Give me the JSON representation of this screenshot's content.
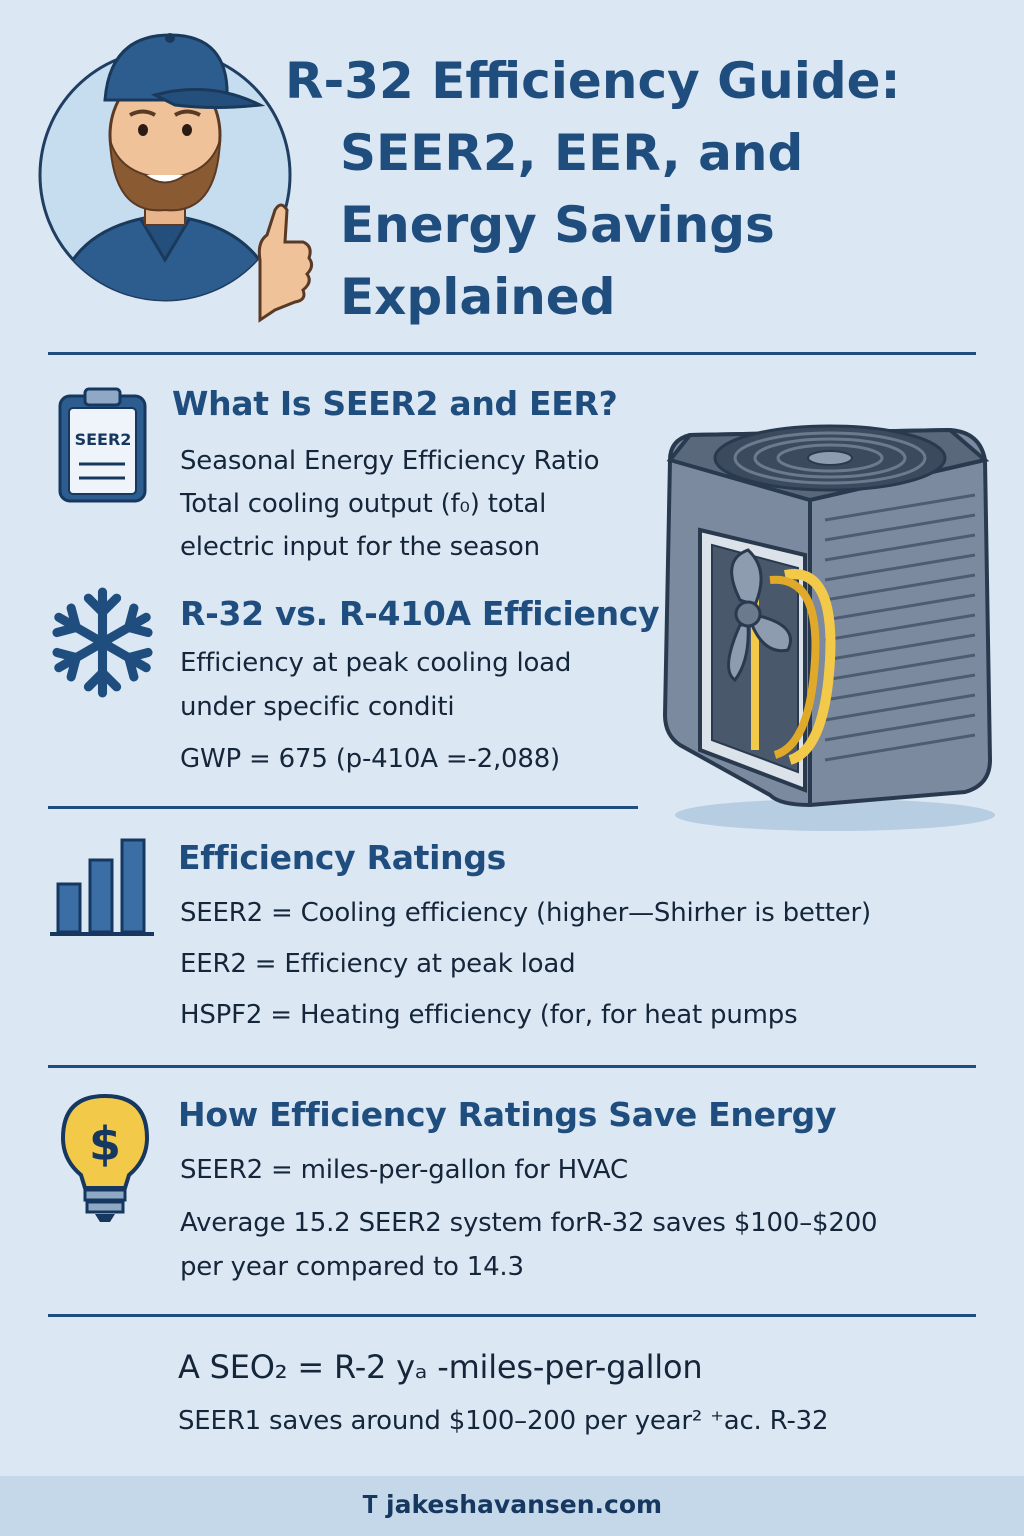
{
  "header": {
    "title_lines": [
      "R-32 Efficiency Guide:",
      "SEER2, EER, and",
      "Energy Savings",
      "Explained"
    ]
  },
  "section1": {
    "heading": "What Is SEER2 and EER?",
    "icon_label": "SEER2",
    "icon": "clipboard-icon",
    "lines": [
      "Seasonal Energy Efficiency Ratio",
      "Total cooling output (f₀) total",
      "electric input for the season"
    ]
  },
  "section2": {
    "heading": "R-32 vs. R-410A Efficiency",
    "icon": "snowflake-icon",
    "lines": [
      "Efficiency at peak cooling load",
      "under specific conditi",
      "GWP = 675 (p-410A =-2,088)"
    ]
  },
  "section3": {
    "heading": "Efficiency Ratings",
    "icon": "bar-chart-icon",
    "lines": [
      "SEER2 = Cooling efficiency (higher—Shirher is better)",
      "EER2 = Efficiency at peak load",
      "HSPF2 = Heating efficiency (for, for heat pumps"
    ]
  },
  "section4": {
    "heading": "How Efficiency Ratings Save Energy",
    "icon": "lightbulb-dollar-icon",
    "lines": [
      "SEER2 = miles-per-gallon for HVAC",
      "Average 15.2 SEER2 system forR-32 saves $100–$200",
      "per year compared to 14.3"
    ]
  },
  "section5": {
    "lines": [
      "A SEO₂ = R-2 yₐ -miles-per-gallon",
      "SEER1 saves around $100–200 per year² ⁺ac. R-32"
    ]
  },
  "footer": {
    "url": "jakeshavansen.com",
    "icon": "logo-mark-icon"
  },
  "colors": {
    "background": "#dbe8f4",
    "primary": "#1f4d7e",
    "text": "#16263a",
    "accent_yellow": "#f3c94a",
    "unit_gray": "#6c7a8c"
  }
}
